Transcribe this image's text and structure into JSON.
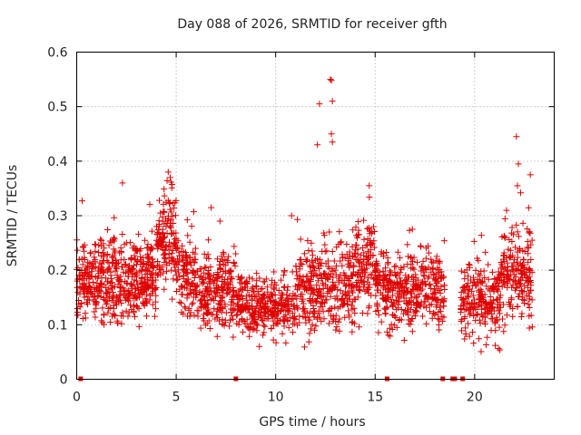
{
  "chart_data": {
    "type": "scatter",
    "title": "Day 088 of 2026, SRMTID for receiver gfth",
    "xlabel": "GPS time / hours",
    "ylabel": "SRMTID / TECUs",
    "xlim": [
      0,
      24
    ],
    "ylim": [
      0,
      0.6
    ],
    "x_ticks": [
      0,
      5,
      10,
      15,
      20
    ],
    "x_tick_labels": [
      "0",
      "5",
      "10",
      "15",
      "20"
    ],
    "y_ticks": [
      0,
      0.1,
      0.2,
      0.3,
      0.4,
      0.5,
      0.6
    ],
    "y_tick_labels": [
      "0",
      "0.1",
      "0.2",
      "0.3",
      "0.4",
      "0.5",
      "0.6"
    ],
    "grid": true,
    "marker": "plus",
    "color": "#e00000",
    "data_gaps_at_zero": [
      0.2,
      8.0,
      15.6,
      18.4,
      18.9,
      19.0,
      19.4
    ],
    "series": [
      {
        "name": "SRMTID",
        "segments": [
          {
            "t0": 0.0,
            "t1": 4.0,
            "mean": 0.18,
            "spread": 0.055,
            "count": 520
          },
          {
            "t0": 4.0,
            "t1": 5.0,
            "mean": 0.26,
            "spread": 0.06,
            "count": 140
          },
          {
            "t0": 5.0,
            "t1": 6.0,
            "mean": 0.19,
            "spread": 0.05,
            "count": 120
          },
          {
            "t0": 6.0,
            "t1": 8.0,
            "mean": 0.16,
            "spread": 0.045,
            "count": 230
          },
          {
            "t0": 8.0,
            "t1": 11.0,
            "mean": 0.13,
            "spread": 0.035,
            "count": 330
          },
          {
            "t0": 11.0,
            "t1": 14.0,
            "mean": 0.17,
            "spread": 0.06,
            "count": 340
          },
          {
            "t0": 14.0,
            "t1": 15.0,
            "mean": 0.21,
            "spread": 0.055,
            "count": 120
          },
          {
            "t0": 15.0,
            "t1": 18.5,
            "mean": 0.16,
            "spread": 0.05,
            "count": 400
          },
          {
            "t0": 19.3,
            "t1": 21.3,
            "mean": 0.14,
            "spread": 0.045,
            "count": 220
          },
          {
            "t0": 21.3,
            "t1": 22.9,
            "mean": 0.19,
            "spread": 0.06,
            "count": 190
          }
        ],
        "peaks": [
          {
            "x": 4.6,
            "y": 0.38
          },
          {
            "x": 4.7,
            "y": 0.37
          },
          {
            "x": 2.3,
            "y": 0.36
          },
          {
            "x": 12.1,
            "y": 0.43
          },
          {
            "x": 12.2,
            "y": 0.505
          },
          {
            "x": 12.75,
            "y": 0.55
          },
          {
            "x": 12.8,
            "y": 0.548
          },
          {
            "x": 12.85,
            "y": 0.51
          },
          {
            "x": 12.8,
            "y": 0.45
          },
          {
            "x": 12.85,
            "y": 0.435
          },
          {
            "x": 14.7,
            "y": 0.355
          },
          {
            "x": 22.1,
            "y": 0.445
          },
          {
            "x": 22.2,
            "y": 0.395
          },
          {
            "x": 22.15,
            "y": 0.355
          },
          {
            "x": 22.8,
            "y": 0.375
          },
          {
            "x": 7.2,
            "y": 0.29
          },
          {
            "x": 10.8,
            "y": 0.3
          }
        ]
      }
    ]
  }
}
